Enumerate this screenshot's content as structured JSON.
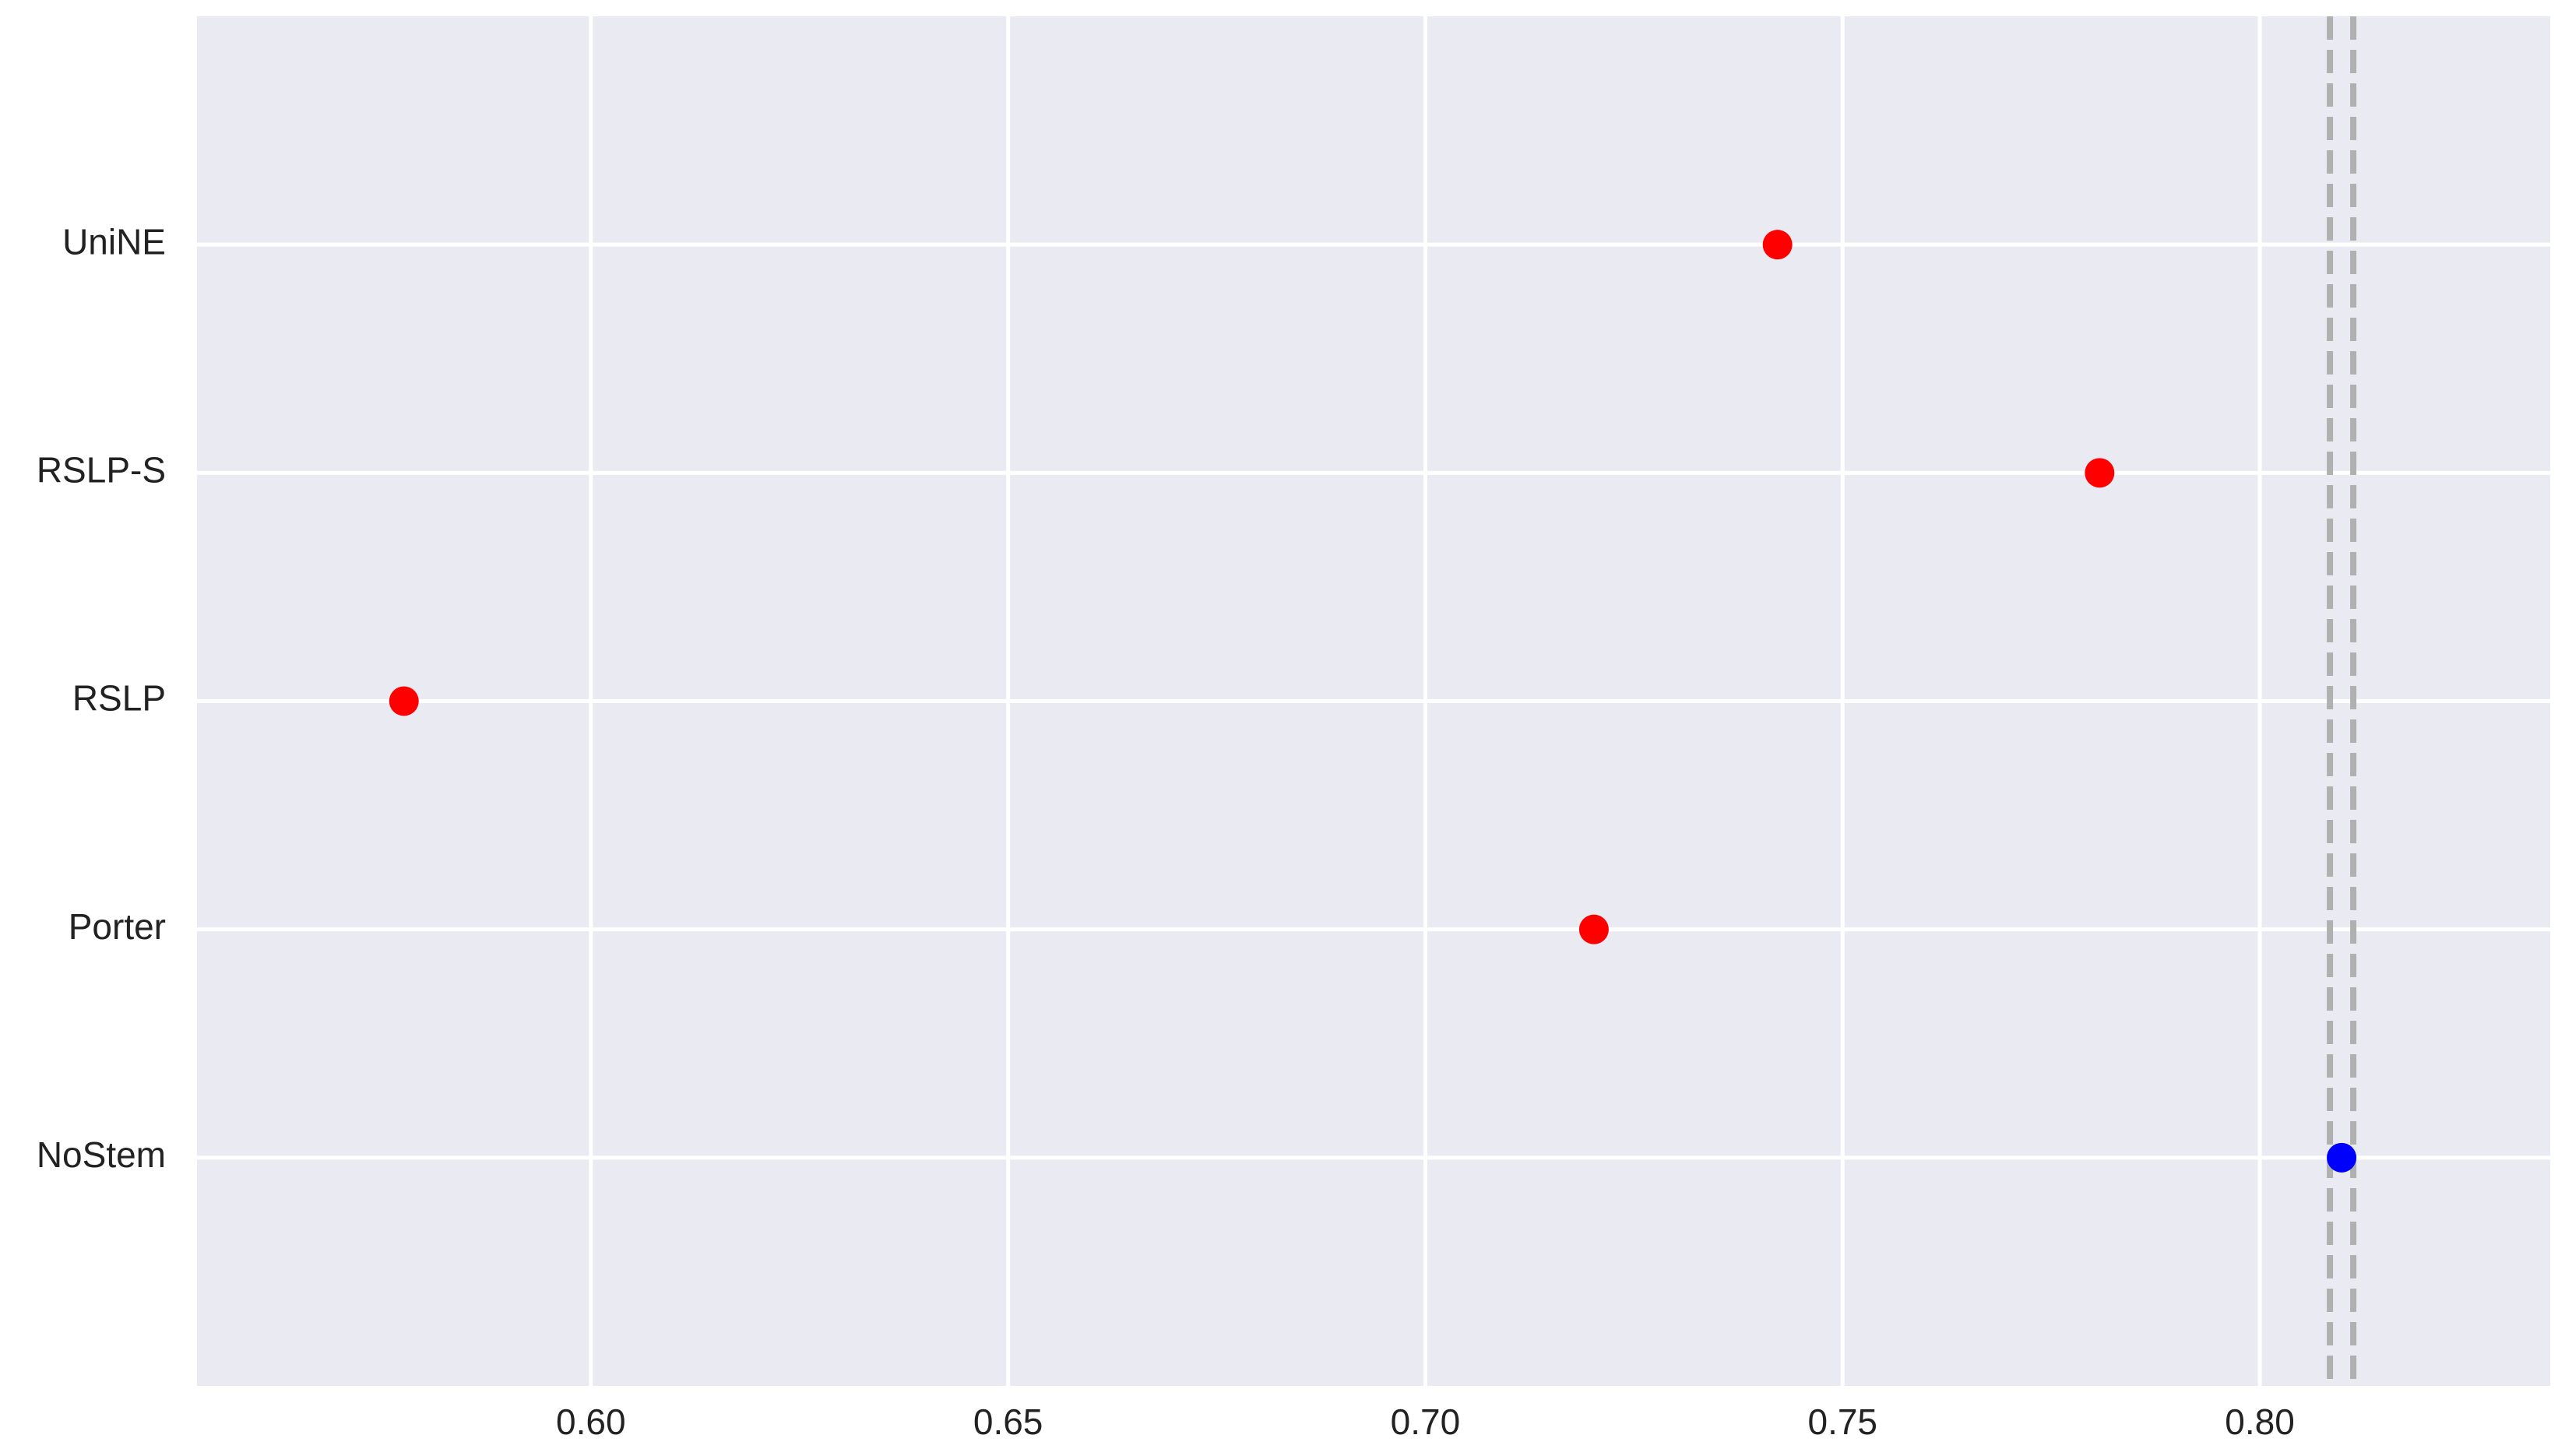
{
  "chart_data": {
    "type": "scatter",
    "categories": [
      "NoStem",
      "Porter",
      "RSLP",
      "RSLP-S",
      "UniNE"
    ],
    "values": [
      0.8098,
      0.7202,
      0.5776,
      0.7808,
      0.7422
    ],
    "colors": [
      "#0000ff",
      "#ff0000",
      "#ff0000",
      "#ff0000",
      "#ff0000"
    ],
    "xlim": [
      0.5528,
      0.8348
    ],
    "xticks": [
      {
        "value": 0.6,
        "label": "0.60"
      },
      {
        "value": 0.65,
        "label": "0.65"
      },
      {
        "value": 0.7,
        "label": "0.70"
      },
      {
        "value": 0.75,
        "label": "0.75"
      },
      {
        "value": 0.8,
        "label": "0.80"
      }
    ],
    "vlines": [
      0.8084,
      0.8112
    ],
    "vline_color": "#b0b0b0",
    "grid": true
  }
}
